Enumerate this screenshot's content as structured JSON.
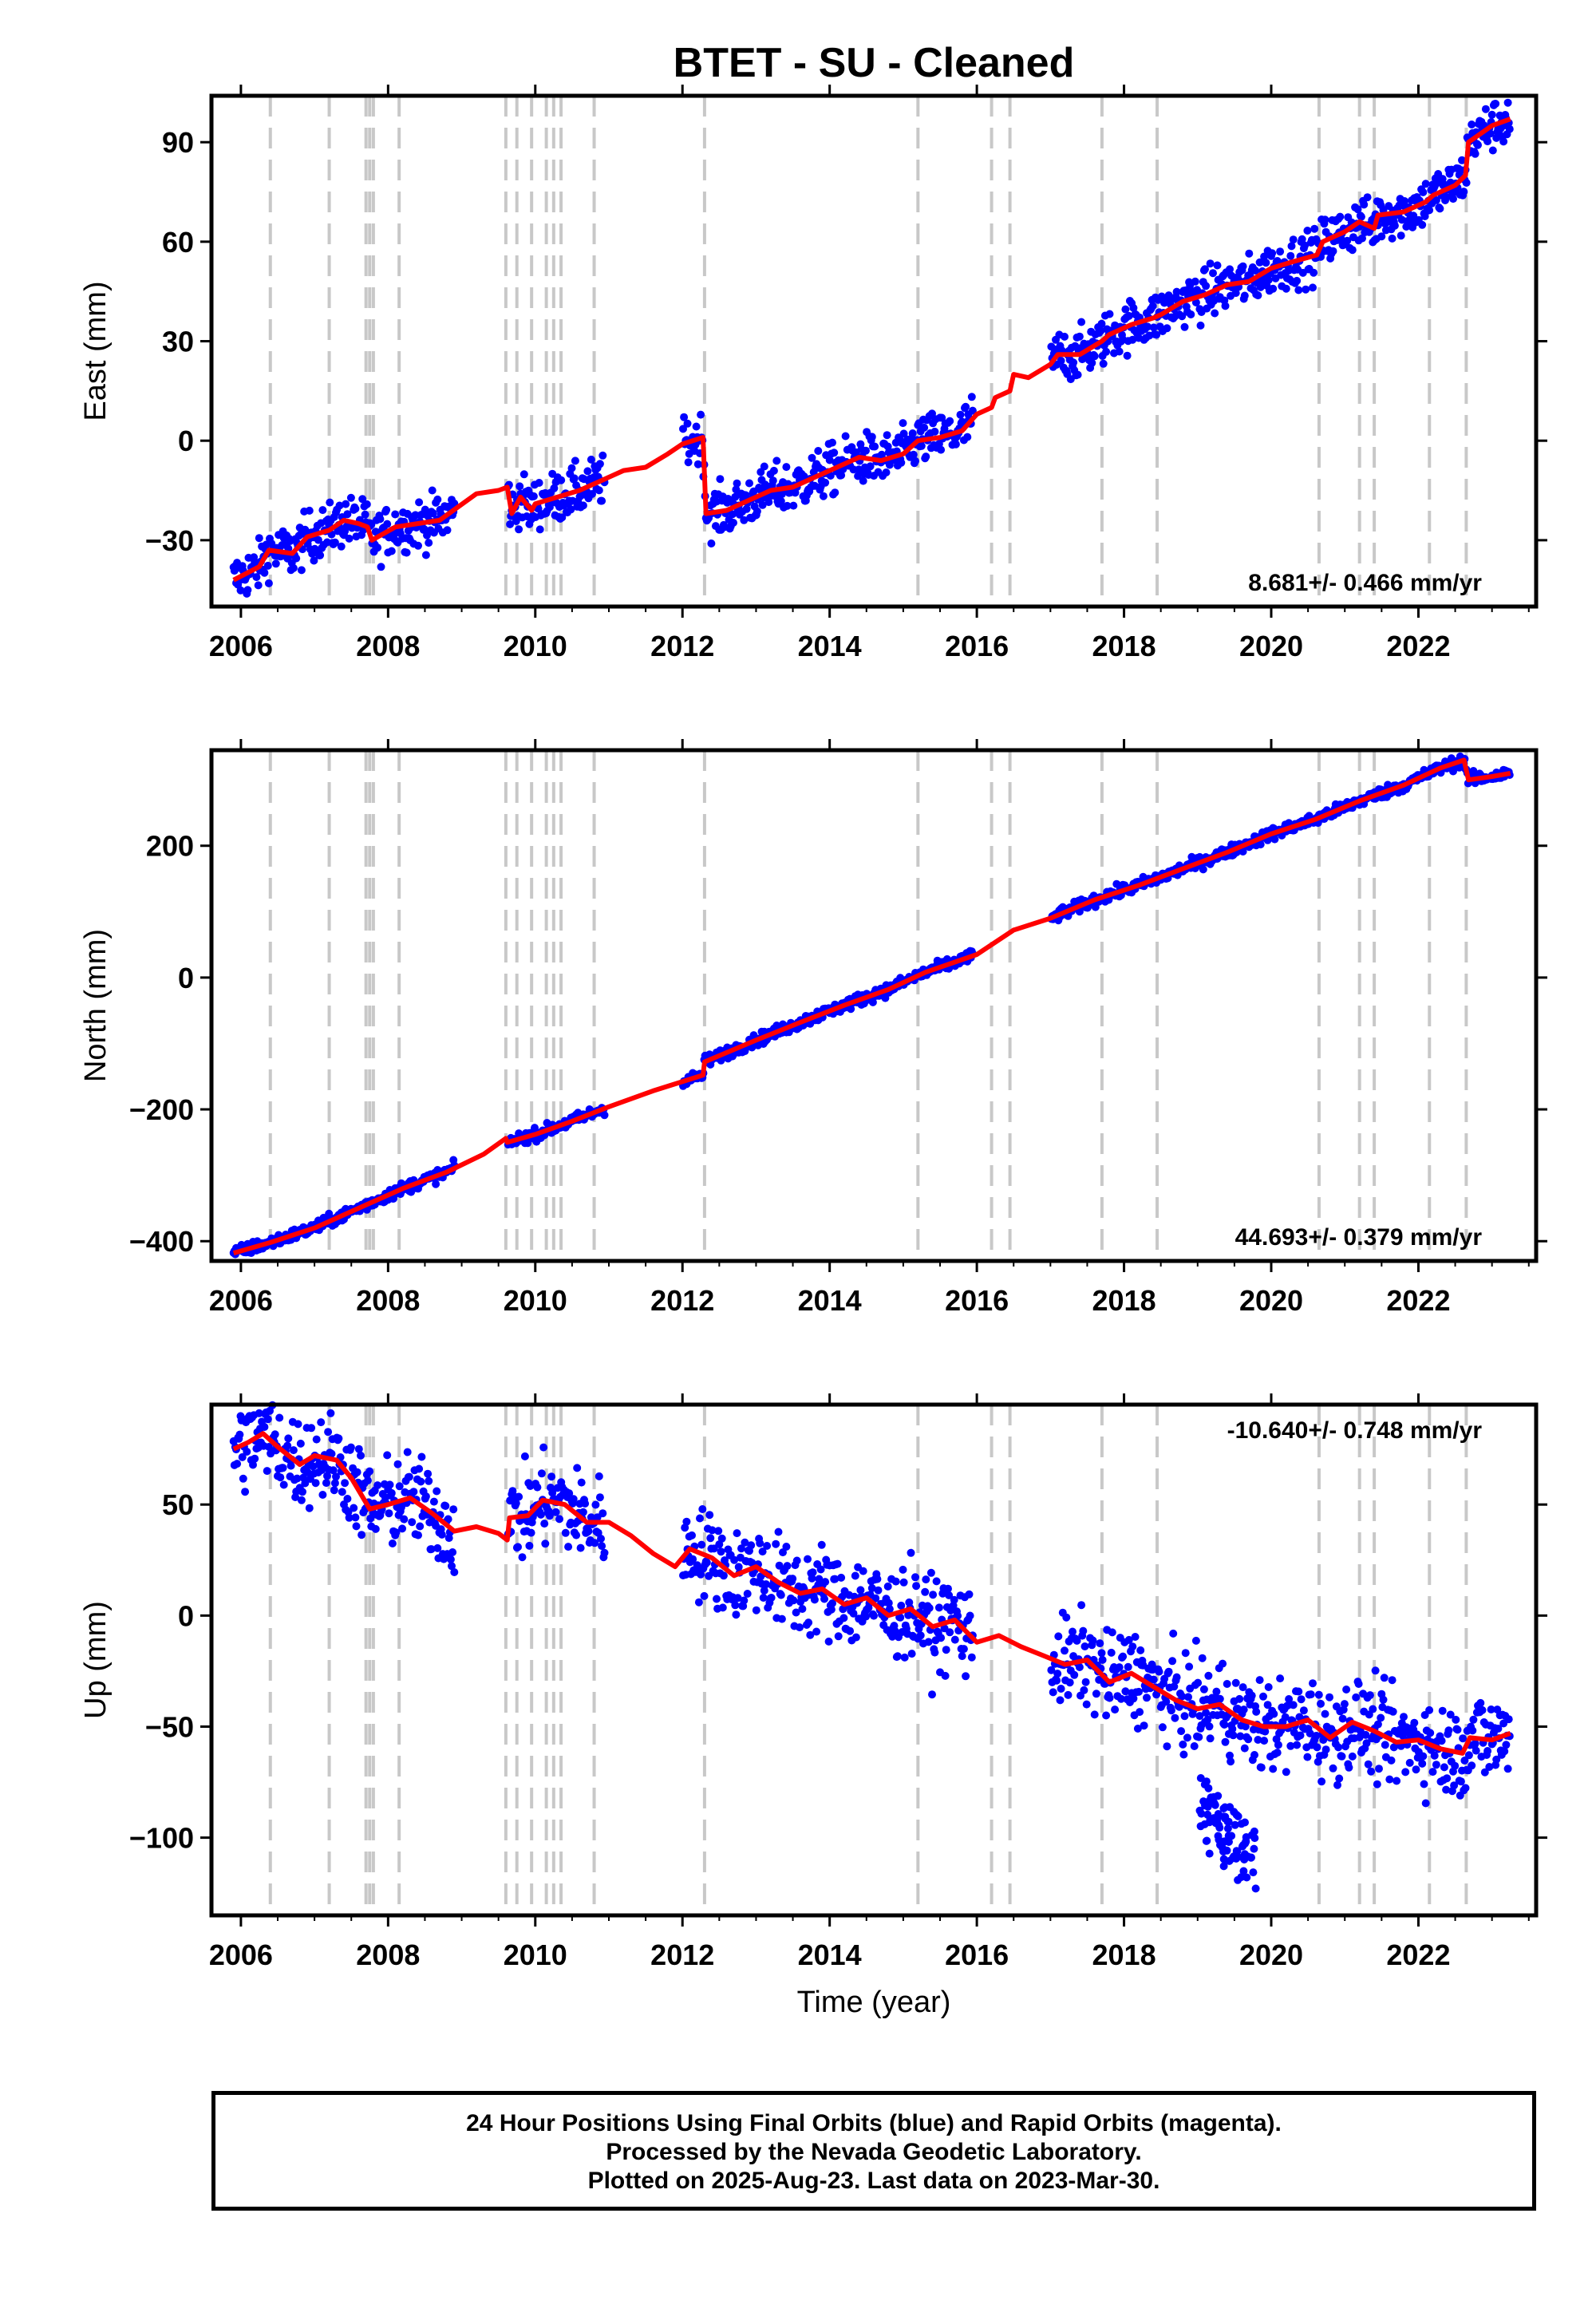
{
  "title": "BTET  - SU - Cleaned",
  "x_axis_label": "Time (year)",
  "footer": {
    "line1": "24 Hour Positions Using Final Orbits (blue) and Rapid Orbits (magenta).",
    "line2": "Processed by the Nevada Geodetic Laboratory.",
    "line3": "Plotted on 2025-Aug-23. Last data on 2023-Mar-30."
  },
  "colors": {
    "data": "#0000ff",
    "model": "#ff0000",
    "steps": "#c8c8c8",
    "frame": "#000000"
  },
  "chart_data": [
    {
      "type": "scatter",
      "ylabel": "East (mm)",
      "xlim": [
        2005.6,
        2023.6
      ],
      "ylim": [
        -50,
        104
      ],
      "xticks": [
        2006,
        2008,
        2010,
        2012,
        2014,
        2016,
        2018,
        2020,
        2022
      ],
      "yticks": [
        -30,
        0,
        30,
        60,
        90
      ],
      "ytick_labels": [
        "−30",
        "0",
        "30",
        "60",
        "90"
      ],
      "rate_text": "8.681+/- 0.466 mm/yr",
      "rate_position": "bottom-right",
      "step_epochs": [
        2006.4,
        2007.2,
        2007.7,
        2007.75,
        2007.8,
        2008.15,
        2009.6,
        2009.75,
        2009.95,
        2010.15,
        2010.25,
        2010.35,
        2010.8,
        2012.3,
        2015.2,
        2016.2,
        2016.45,
        2017.7,
        2018.45,
        2020.65,
        2021.2,
        2021.4,
        2022.15,
        2022.65
      ],
      "model": {
        "x": [
          2005.9,
          2006.25,
          2006.38,
          2006.7,
          2006.9,
          2007.2,
          2007.4,
          2007.6,
          2007.72,
          2007.78,
          2008.1,
          2008.4,
          2008.7,
          2008.95,
          2009.2,
          2009.5,
          2009.62,
          2009.68,
          2009.8,
          2009.95,
          2010.0,
          2010.3,
          2010.6,
          2010.9,
          2011.2,
          2011.5,
          2011.8,
          2012.0,
          2012.28,
          2012.32,
          2012.6,
          2012.9,
          2013.2,
          2013.5,
          2013.8,
          2014.1,
          2014.4,
          2014.7,
          2015.0,
          2015.2,
          2015.5,
          2015.8,
          2016.0,
          2016.2,
          2016.25,
          2016.45,
          2016.5,
          2016.7,
          2017.0,
          2017.1,
          2017.4,
          2017.7,
          2017.8,
          2018.1,
          2018.4,
          2018.5,
          2018.8,
          2019.1,
          2019.4,
          2019.7,
          2020.0,
          2020.3,
          2020.62,
          2020.7,
          2021.0,
          2021.2,
          2021.4,
          2021.45,
          2021.8,
          2022.1,
          2022.2,
          2022.5,
          2022.64,
          2022.68,
          2023.0,
          2023.25
        ],
        "y": [
          -42,
          -38,
          -33,
          -34,
          -29,
          -27,
          -24,
          -25,
          -26,
          -30,
          -26,
          -25,
          -24,
          -20,
          -16,
          -15,
          -14,
          -22,
          -17,
          -21,
          -19,
          -17,
          -15,
          -12,
          -9,
          -8,
          -4,
          -1,
          1,
          -22,
          -21,
          -18,
          -15,
          -14,
          -11,
          -8,
          -5,
          -6,
          -4,
          0,
          1,
          3,
          8,
          10,
          13,
          15,
          20,
          19,
          23,
          26,
          26,
          30,
          32,
          35,
          37,
          38,
          42,
          44,
          47,
          48,
          52,
          54,
          56,
          60,
          63,
          66,
          64,
          68,
          69,
          72,
          74,
          77,
          80,
          90,
          95,
          97
        ]
      }
    },
    {
      "type": "scatter",
      "ylabel": "North (mm)",
      "xlim": [
        2005.6,
        2023.6
      ],
      "ylim": [
        -430,
        345
      ],
      "xticks": [
        2006,
        2008,
        2010,
        2012,
        2014,
        2016,
        2018,
        2020,
        2022
      ],
      "yticks": [
        -400,
        -200,
        0,
        200
      ],
      "ytick_labels": [
        "−400",
        "−200",
        "0",
        "200"
      ],
      "rate_text": "44.693+/- 0.379 mm/yr",
      "rate_position": "bottom-right",
      "step_epochs": [
        2006.4,
        2007.2,
        2007.7,
        2007.75,
        2007.8,
        2008.15,
        2009.6,
        2009.75,
        2009.95,
        2010.15,
        2010.25,
        2010.35,
        2010.8,
        2012.3,
        2015.2,
        2016.2,
        2016.45,
        2017.7,
        2018.45,
        2020.65,
        2021.2,
        2021.4,
        2022.15,
        2022.65
      ],
      "model": {
        "x": [
          2005.9,
          2006.4,
          2007.0,
          2007.7,
          2008.2,
          2008.8,
          2009.3,
          2009.6,
          2009.62,
          2010.0,
          2010.5,
          2011.0,
          2011.6,
          2012.28,
          2012.3,
          2013.0,
          2013.6,
          2014.2,
          2014.8,
          2015.3,
          2016.0,
          2016.5,
          2017.0,
          2017.6,
          2018.2,
          2018.8,
          2019.4,
          2020.0,
          2020.6,
          2021.2,
          2021.8,
          2022.3,
          2022.62,
          2022.68,
          2023.0,
          2023.25
        ],
        "y": [
          -418,
          -402,
          -380,
          -345,
          -320,
          -295,
          -268,
          -244,
          -250,
          -238,
          -218,
          -196,
          -172,
          -148,
          -128,
          -95,
          -68,
          -42,
          -18,
          8,
          35,
          72,
          90,
          118,
          140,
          165,
          190,
          218,
          240,
          268,
          292,
          318,
          330,
          300,
          305,
          310
        ]
      }
    },
    {
      "type": "scatter",
      "ylabel": "Up (mm)",
      "xlabel": "Time (year)",
      "xlim": [
        2005.6,
        2023.6
      ],
      "ylim": [
        -135,
        95
      ],
      "xticks": [
        2006,
        2008,
        2010,
        2012,
        2014,
        2016,
        2018,
        2020,
        2022
      ],
      "yticks": [
        -100,
        -50,
        0,
        50
      ],
      "ytick_labels": [
        "−100",
        "−50",
        "0",
        "50"
      ],
      "rate_text": "-10.640+/- 0.748 mm/yr",
      "rate_position": "top-right",
      "step_epochs": [
        2006.4,
        2007.2,
        2007.7,
        2007.75,
        2007.8,
        2008.15,
        2009.6,
        2009.75,
        2009.95,
        2010.15,
        2010.25,
        2010.35,
        2010.8,
        2012.3,
        2015.2,
        2016.2,
        2016.45,
        2017.7,
        2018.45,
        2020.65,
        2021.2,
        2021.4,
        2022.15,
        2022.65
      ],
      "outlier_cluster": {
        "x_range": [
          2019.0,
          2019.8
        ],
        "y_range": [
          -130,
          -70
        ]
      },
      "model": {
        "x": [
          2005.9,
          2006.1,
          2006.3,
          2006.5,
          2006.8,
          2007.0,
          2007.3,
          2007.5,
          2007.75,
          2008.0,
          2008.3,
          2008.6,
          2008.9,
          2009.2,
          2009.5,
          2009.62,
          2009.65,
          2009.9,
          2010.1,
          2010.4,
          2010.7,
          2011.0,
          2011.3,
          2011.6,
          2011.9,
          2012.1,
          2012.4,
          2012.7,
          2013.0,
          2013.3,
          2013.6,
          2013.9,
          2014.2,
          2014.5,
          2014.8,
          2015.1,
          2015.4,
          2015.7,
          2016.0,
          2016.3,
          2016.6,
          2016.9,
          2017.2,
          2017.5,
          2017.8,
          2018.1,
          2018.4,
          2018.7,
          2019.0,
          2019.3,
          2019.6,
          2019.9,
          2020.2,
          2020.5,
          2020.8,
          2021.1,
          2021.4,
          2021.7,
          2022.0,
          2022.3,
          2022.6,
          2022.7,
          2023.0,
          2023.25
        ],
        "y": [
          75,
          78,
          82,
          76,
          68,
          72,
          70,
          62,
          48,
          50,
          53,
          46,
          38,
          40,
          37,
          34,
          44,
          45,
          52,
          50,
          42,
          42,
          36,
          28,
          22,
          30,
          26,
          18,
          22,
          15,
          10,
          12,
          5,
          8,
          0,
          3,
          -5,
          -2,
          -12,
          -9,
          -14,
          -18,
          -22,
          -20,
          -30,
          -26,
          -32,
          -38,
          -42,
          -40,
          -47,
          -50,
          -50,
          -47,
          -55,
          -48,
          -52,
          -57,
          -56,
          -60,
          -62,
          -55,
          -56,
          -53
        ]
      }
    }
  ]
}
